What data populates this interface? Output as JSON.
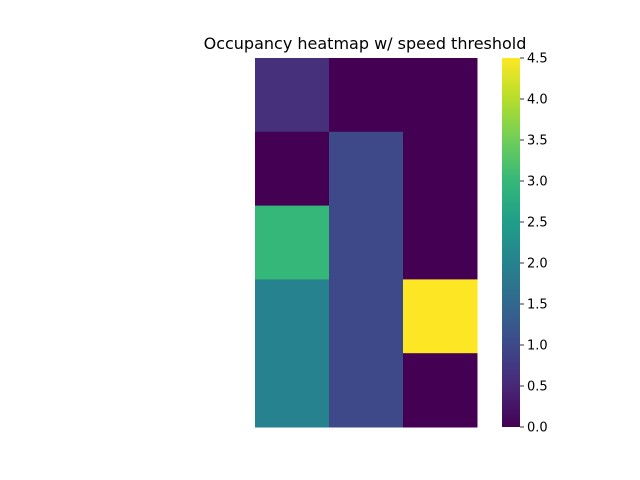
{
  "chart_data": {
    "type": "heatmap",
    "title": "Occupancy heatmap w/ speed threshold",
    "rows": 5,
    "cols": 3,
    "values": [
      [
        0.6,
        0.0,
        0.0
      ],
      [
        0.0,
        1.0,
        0.0
      ],
      [
        3.0,
        1.0,
        0.0
      ],
      [
        2.0,
        1.0,
        4.5
      ],
      [
        2.0,
        1.0,
        0.0
      ]
    ],
    "colormap": "viridis",
    "vmin": 0.0,
    "vmax": 4.5,
    "colorbar_ticks": [
      "0.0",
      "0.5",
      "1.0",
      "1.5",
      "2.0",
      "2.5",
      "3.0",
      "3.5",
      "4.0",
      "4.5"
    ],
    "xlabel": "",
    "ylabel": "",
    "grid": false
  }
}
